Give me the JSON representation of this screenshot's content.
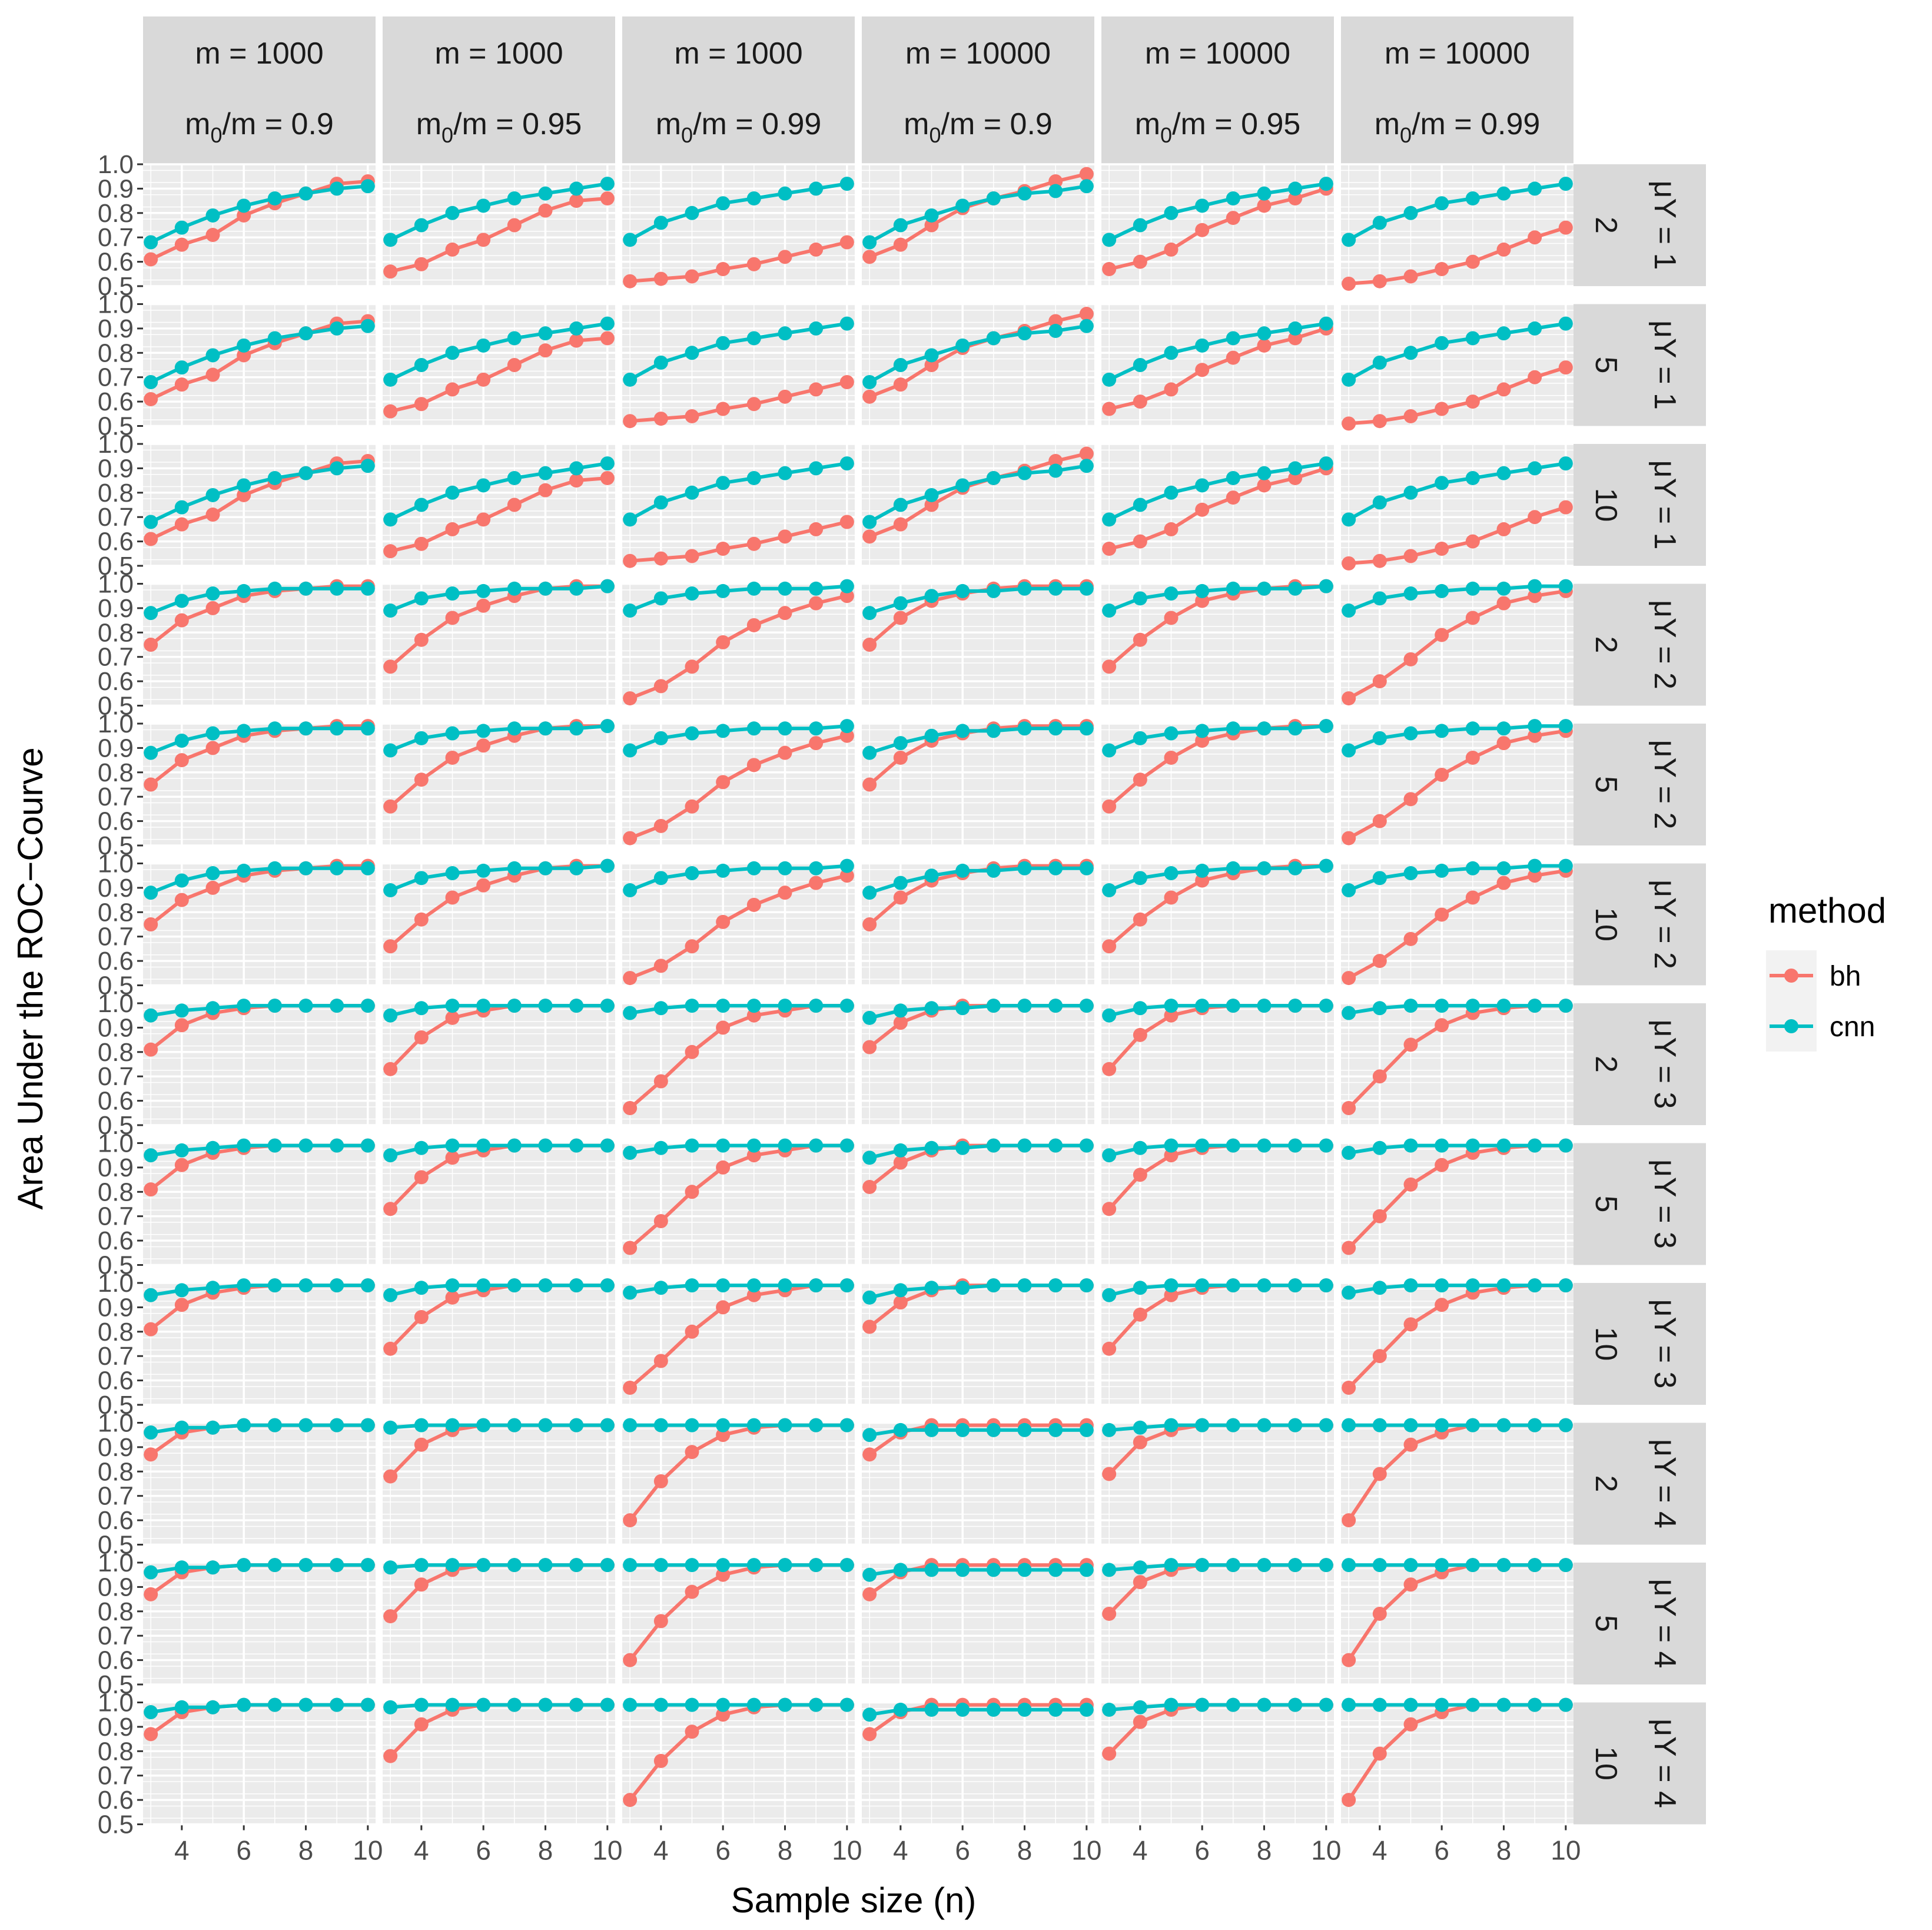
{
  "chart_data": {
    "type": "line",
    "title": "",
    "xlabel": "Sample size (n)",
    "ylabel": "Area Under the ROC−Courve",
    "x": [
      3,
      4,
      5,
      6,
      7,
      8,
      9,
      10
    ],
    "xlim": [
      2.75,
      10.25
    ],
    "ylim": [
      0.5,
      1.0
    ],
    "xticks": [
      4,
      6,
      8,
      10
    ],
    "xtick_labels": [
      "4",
      "6",
      "8",
      "10"
    ],
    "yticks": [
      0.5,
      0.6,
      0.7,
      0.8,
      0.9,
      1.0
    ],
    "ytick_labels": [
      "0.5",
      "0.6",
      "0.7",
      "0.8",
      "0.9",
      "1.0"
    ],
    "column_facets": [
      {
        "m": "m = 1000",
        "ratio_base": "m",
        "ratio_sub": "0",
        "ratio_rest": "/m = 0.9"
      },
      {
        "m": "m = 1000",
        "ratio_base": "m",
        "ratio_sub": "0",
        "ratio_rest": "/m = 0.95"
      },
      {
        "m": "m = 1000",
        "ratio_base": "m",
        "ratio_sub": "0",
        "ratio_rest": "/m = 0.99"
      },
      {
        "m": "m = 10000",
        "ratio_base": "m",
        "ratio_sub": "0",
        "ratio_rest": "/m = 0.9"
      },
      {
        "m": "m = 10000",
        "ratio_base": "m",
        "ratio_sub": "0",
        "ratio_rest": "/m = 0.95"
      },
      {
        "m": "m = 10000",
        "ratio_base": "m",
        "ratio_sub": "0",
        "ratio_rest": "/m = 0.99"
      }
    ],
    "row_facets": [
      {
        "label": "2",
        "mu": "μY = 1"
      },
      {
        "label": "5",
        "mu": "μY = 1"
      },
      {
        "label": "10",
        "mu": "μY = 1"
      },
      {
        "label": "2",
        "mu": "μY = 2"
      },
      {
        "label": "5",
        "mu": "μY = 2"
      },
      {
        "label": "10",
        "mu": "μY = 2"
      },
      {
        "label": "2",
        "mu": "μY = 3"
      },
      {
        "label": "5",
        "mu": "μY = 3"
      },
      {
        "label": "10",
        "mu": "μY = 3"
      },
      {
        "label": "2",
        "mu": "μY = 4"
      },
      {
        "label": "5",
        "mu": "μY = 4"
      },
      {
        "label": "10",
        "mu": "μY = 4"
      }
    ],
    "legend": {
      "title": "method",
      "position": "right",
      "entries": [
        {
          "name": "bh",
          "color": "#F8766D"
        },
        {
          "name": "cnn",
          "color": "#00BFC4"
        }
      ]
    },
    "series_by_mu": {
      "mu1": {
        "bh": [
          [
            0.61,
            0.67,
            0.71,
            0.79,
            0.84,
            0.88,
            0.92,
            0.93
          ],
          [
            0.56,
            0.59,
            0.65,
            0.69,
            0.75,
            0.81,
            0.85,
            0.86
          ],
          [
            0.52,
            0.53,
            0.54,
            0.57,
            0.59,
            0.62,
            0.65,
            0.68
          ],
          [
            0.62,
            0.67,
            0.75,
            0.82,
            0.86,
            0.89,
            0.93,
            0.96
          ],
          [
            0.57,
            0.6,
            0.65,
            0.73,
            0.78,
            0.83,
            0.86,
            0.9
          ],
          [
            0.51,
            0.52,
            0.54,
            0.57,
            0.6,
            0.65,
            0.7,
            0.74
          ]
        ],
        "cnn": [
          [
            0.68,
            0.74,
            0.79,
            0.83,
            0.86,
            0.88,
            0.9,
            0.91
          ],
          [
            0.69,
            0.75,
            0.8,
            0.83,
            0.86,
            0.88,
            0.9,
            0.92
          ],
          [
            0.69,
            0.76,
            0.8,
            0.84,
            0.86,
            0.88,
            0.9,
            0.92
          ],
          [
            0.68,
            0.75,
            0.79,
            0.83,
            0.86,
            0.88,
            0.89,
            0.91
          ],
          [
            0.69,
            0.75,
            0.8,
            0.83,
            0.86,
            0.88,
            0.9,
            0.92
          ],
          [
            0.69,
            0.76,
            0.8,
            0.84,
            0.86,
            0.88,
            0.9,
            0.92
          ]
        ]
      },
      "mu2": {
        "bh": [
          [
            0.75,
            0.85,
            0.9,
            0.95,
            0.97,
            0.98,
            0.99,
            0.99
          ],
          [
            0.66,
            0.77,
            0.86,
            0.91,
            0.95,
            0.98,
            0.99,
            0.99
          ],
          [
            0.53,
            0.58,
            0.66,
            0.76,
            0.83,
            0.88,
            0.92,
            0.95
          ],
          [
            0.75,
            0.86,
            0.93,
            0.96,
            0.98,
            0.99,
            0.99,
            0.99
          ],
          [
            0.66,
            0.77,
            0.86,
            0.93,
            0.96,
            0.98,
            0.99,
            0.99
          ],
          [
            0.53,
            0.6,
            0.69,
            0.79,
            0.86,
            0.92,
            0.95,
            0.97
          ]
        ],
        "cnn": [
          [
            0.88,
            0.93,
            0.96,
            0.97,
            0.98,
            0.98,
            0.98,
            0.98
          ],
          [
            0.89,
            0.94,
            0.96,
            0.97,
            0.98,
            0.98,
            0.98,
            0.99
          ],
          [
            0.89,
            0.94,
            0.96,
            0.97,
            0.98,
            0.98,
            0.98,
            0.99
          ],
          [
            0.88,
            0.92,
            0.95,
            0.97,
            0.97,
            0.98,
            0.98,
            0.98
          ],
          [
            0.89,
            0.94,
            0.96,
            0.97,
            0.98,
            0.98,
            0.98,
            0.99
          ],
          [
            0.89,
            0.94,
            0.96,
            0.97,
            0.98,
            0.98,
            0.99,
            0.99
          ]
        ]
      },
      "mu3": {
        "bh": [
          [
            0.81,
            0.91,
            0.96,
            0.98,
            0.99,
            0.99,
            0.99,
            0.99
          ],
          [
            0.73,
            0.86,
            0.94,
            0.97,
            0.99,
            0.99,
            0.99,
            0.99
          ],
          [
            0.57,
            0.68,
            0.8,
            0.9,
            0.95,
            0.97,
            0.99,
            0.99
          ],
          [
            0.82,
            0.92,
            0.97,
            0.99,
            0.99,
            0.99,
            0.99,
            0.99
          ],
          [
            0.73,
            0.87,
            0.95,
            0.98,
            0.99,
            0.99,
            0.99,
            0.99
          ],
          [
            0.57,
            0.7,
            0.83,
            0.91,
            0.96,
            0.98,
            0.99,
            0.99
          ]
        ],
        "cnn": [
          [
            0.95,
            0.97,
            0.98,
            0.99,
            0.99,
            0.99,
            0.99,
            0.99
          ],
          [
            0.95,
            0.98,
            0.99,
            0.99,
            0.99,
            0.99,
            0.99,
            0.99
          ],
          [
            0.96,
            0.98,
            0.99,
            0.99,
            0.99,
            0.99,
            0.99,
            0.99
          ],
          [
            0.94,
            0.97,
            0.98,
            0.98,
            0.99,
            0.99,
            0.99,
            0.99
          ],
          [
            0.95,
            0.98,
            0.99,
            0.99,
            0.99,
            0.99,
            0.99,
            0.99
          ],
          [
            0.96,
            0.98,
            0.99,
            0.99,
            0.99,
            0.99,
            0.99,
            0.99
          ]
        ]
      },
      "mu4": {
        "bh": [
          [
            0.87,
            0.96,
            0.98,
            0.99,
            0.99,
            0.99,
            0.99,
            0.99
          ],
          [
            0.78,
            0.91,
            0.97,
            0.99,
            0.99,
            0.99,
            0.99,
            0.99
          ],
          [
            0.6,
            0.76,
            0.88,
            0.95,
            0.98,
            0.99,
            0.99,
            0.99
          ],
          [
            0.87,
            0.96,
            0.99,
            0.99,
            0.99,
            0.99,
            0.99,
            0.99
          ],
          [
            0.79,
            0.92,
            0.97,
            0.99,
            0.99,
            0.99,
            0.99,
            0.99
          ],
          [
            0.6,
            0.79,
            0.91,
            0.96,
            0.99,
            0.99,
            0.99,
            0.99
          ]
        ],
        "cnn": [
          [
            0.96,
            0.98,
            0.98,
            0.99,
            0.99,
            0.99,
            0.99,
            0.99
          ],
          [
            0.98,
            0.99,
            0.99,
            0.99,
            0.99,
            0.99,
            0.99,
            0.99
          ],
          [
            0.99,
            0.99,
            0.99,
            0.99,
            0.99,
            0.99,
            0.99,
            0.99
          ],
          [
            0.95,
            0.97,
            0.97,
            0.97,
            0.97,
            0.97,
            0.97,
            0.97
          ],
          [
            0.97,
            0.98,
            0.99,
            0.99,
            0.99,
            0.99,
            0.99,
            0.99
          ],
          [
            0.99,
            0.99,
            0.99,
            0.99,
            0.99,
            0.99,
            0.99,
            0.99
          ]
        ]
      }
    },
    "colors": {
      "panel_bg": "#EBEBEB",
      "strip_bg": "#D9D9D9",
      "grid": "#FFFFFF",
      "axis_text": "#4D4D4D",
      "text": "#1A1A1A"
    }
  }
}
